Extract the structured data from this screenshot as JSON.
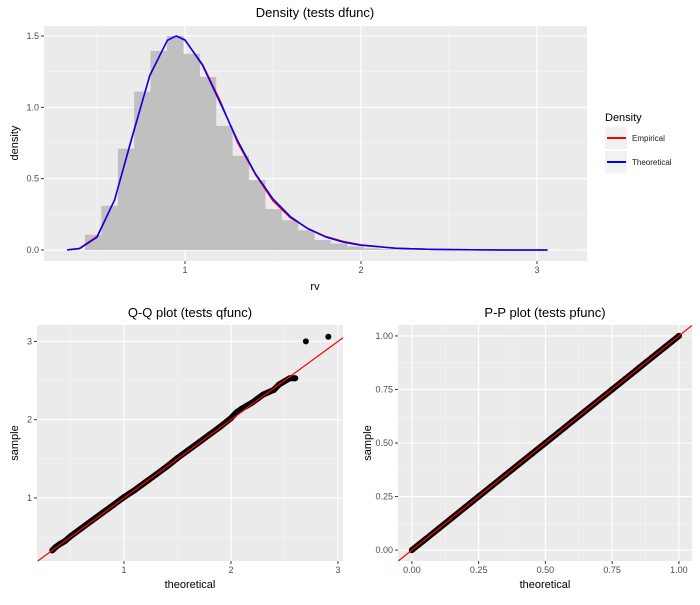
{
  "chart_data": [
    {
      "type": "histogram+line",
      "title": "Density (tests dfunc)",
      "xlabel": "rv",
      "ylabel": "density",
      "xlim": [
        0.199,
        3.284
      ],
      "ylim": [
        -0.077,
        1.57
      ],
      "xticks": [
        1,
        2,
        3
      ],
      "xtick_labels": [
        "1",
        "2",
        "3"
      ],
      "yticks": [
        0,
        0.5,
        1.0,
        1.5
      ],
      "ytick_labels": [
        "0.0",
        "0.5",
        "1.0",
        "1.5"
      ],
      "grid": true,
      "histogram": {
        "bin_start": 0.432,
        "bin_width": 0.093,
        "heights": [
          0.107,
          0.31,
          0.71,
          1.11,
          1.395,
          1.5,
          1.375,
          1.213,
          0.87,
          0.66,
          0.49,
          0.287,
          0.208,
          0.138,
          0.07,
          0.045,
          0.025,
          0.012,
          0.006,
          0.004,
          0.002,
          0.001,
          0.001,
          0.0,
          0.0,
          0.001,
          0.0,
          0.0,
          0.0,
          0.001
        ],
        "color": "#bebebe"
      },
      "legend": {
        "title": "Density",
        "position": "right"
      },
      "series": [
        {
          "name": "Empirical",
          "color": "#ff0000",
          "x": [
            0.33,
            0.4,
            0.5,
            0.6,
            0.7,
            0.8,
            0.9,
            0.95,
            1.0,
            1.1,
            1.2,
            1.3,
            1.4,
            1.5,
            1.6,
            1.7,
            1.8,
            1.9,
            2.0,
            2.2,
            2.4,
            2.7,
            3.06
          ],
          "y": [
            0.001,
            0.011,
            0.095,
            0.35,
            0.8,
            1.22,
            1.47,
            1.5,
            1.47,
            1.3,
            1.045,
            0.75,
            0.53,
            0.345,
            0.225,
            0.15,
            0.095,
            0.06,
            0.036,
            0.012,
            0.004,
            0.001,
            0.0
          ]
        },
        {
          "name": "Theoretical",
          "color": "#0000ff",
          "x": [
            0.33,
            0.4,
            0.5,
            0.6,
            0.7,
            0.8,
            0.9,
            0.95,
            1.0,
            1.1,
            1.2,
            1.3,
            1.4,
            1.5,
            1.6,
            1.7,
            1.8,
            1.9,
            2.0,
            2.2,
            2.4,
            2.7,
            3.06
          ],
          "y": [
            0.0007,
            0.0089,
            0.089,
            0.352,
            0.791,
            1.225,
            1.47,
            1.4996,
            1.473,
            1.294,
            1.031,
            0.764,
            0.535,
            0.358,
            0.233,
            0.147,
            0.091,
            0.0555,
            0.0335,
            0.0119,
            0.0041,
            0.0008,
            0.0001
          ]
        }
      ]
    },
    {
      "type": "scatter",
      "title": "Q-Q plot (tests qfunc)",
      "xlabel": "theoretical",
      "ylabel": "sample",
      "xlim": [
        0.187,
        3.047
      ],
      "ylim": [
        0.194,
        3.21
      ],
      "xticks": [
        1,
        2,
        3
      ],
      "xtick_labels": [
        "1",
        "2",
        "3"
      ],
      "yticks": [
        1,
        2,
        3
      ],
      "ytick_labels": [
        "1",
        "2",
        "3"
      ],
      "grid": true,
      "reference_line": {
        "slope": 1,
        "intercept": 0,
        "color": "#ff0000"
      },
      "points": {
        "x": [
          0.33,
          0.36,
          0.4,
          0.45,
          0.5,
          0.6,
          0.7,
          0.8,
          0.9,
          1.0,
          1.1,
          1.2,
          1.3,
          1.4,
          1.5,
          1.6,
          1.7,
          1.8,
          1.9,
          2.0,
          2.05,
          2.1,
          2.15,
          2.2,
          2.25,
          2.3,
          2.35,
          2.4,
          2.45,
          2.5,
          2.55,
          2.6,
          2.7,
          2.91
        ],
        "y": [
          0.33,
          0.37,
          0.41,
          0.45,
          0.51,
          0.61,
          0.71,
          0.81,
          0.91,
          1.01,
          1.1,
          1.2,
          1.3,
          1.4,
          1.51,
          1.61,
          1.71,
          1.81,
          1.91,
          2.02,
          2.09,
          2.14,
          2.18,
          2.22,
          2.27,
          2.32,
          2.35,
          2.38,
          2.45,
          2.49,
          2.53,
          2.53,
          3.0,
          3.06
        ]
      }
    },
    {
      "type": "scatter",
      "title": "P-P plot (tests pfunc)",
      "xlabel": "theoretical",
      "ylabel": "sample",
      "xlim": [
        -0.052,
        1.049
      ],
      "ylim": [
        -0.051,
        1.051
      ],
      "xticks": [
        0,
        0.25,
        0.5,
        0.75,
        1.0
      ],
      "xtick_labels": [
        "0.00",
        "0.25",
        "0.50",
        "0.75",
        "1.00"
      ],
      "yticks": [
        0,
        0.25,
        0.5,
        0.75,
        1.0
      ],
      "ytick_labels": [
        "0.00",
        "0.25",
        "0.50",
        "0.75",
        "1.00"
      ],
      "grid": true,
      "reference_line": {
        "slope": 1,
        "intercept": 0,
        "color": "#ff0000"
      },
      "points": {
        "x": [
          0,
          0.05,
          0.1,
          0.15,
          0.2,
          0.25,
          0.3,
          0.35,
          0.4,
          0.45,
          0.5,
          0.55,
          0.6,
          0.65,
          0.7,
          0.75,
          0.8,
          0.85,
          0.9,
          0.95,
          1.0
        ],
        "y": [
          0,
          0.05,
          0.1,
          0.15,
          0.2,
          0.25,
          0.3,
          0.35,
          0.4,
          0.45,
          0.5,
          0.55,
          0.6,
          0.65,
          0.7,
          0.75,
          0.8,
          0.85,
          0.9,
          0.95,
          1.0
        ]
      }
    }
  ]
}
